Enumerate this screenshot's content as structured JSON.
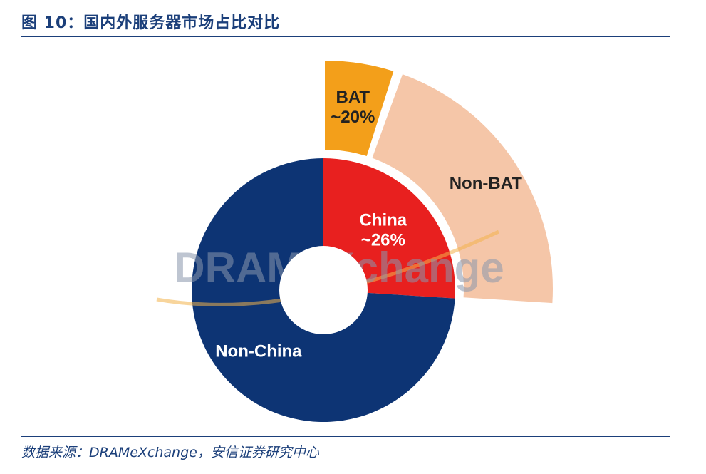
{
  "header": {
    "title": "图 10：国内外服务器市场占比对比"
  },
  "footer": {
    "source": "数据来源：DRAMeXchange，安信证券研究中心"
  },
  "watermark": {
    "text": "DRAMeXchange"
  },
  "colors": {
    "non_china": "#0d3474",
    "china": "#e8201f",
    "bat": "#f39f1a",
    "non_bat": "#f5c6a8",
    "title": "#1b3f7a"
  },
  "chart_data": {
    "type": "pie",
    "inner": {
      "slices": [
        {
          "label": "China",
          "value_label": "~26%",
          "value": 26
        },
        {
          "label": "Non-China",
          "value_label": "",
          "value": 74
        }
      ]
    },
    "outer": {
      "parent": "China",
      "slices": [
        {
          "label": "BAT",
          "value_label": "~20%",
          "value": 20
        },
        {
          "label": "Non-BAT",
          "value_label": "",
          "value": 80
        }
      ]
    }
  }
}
